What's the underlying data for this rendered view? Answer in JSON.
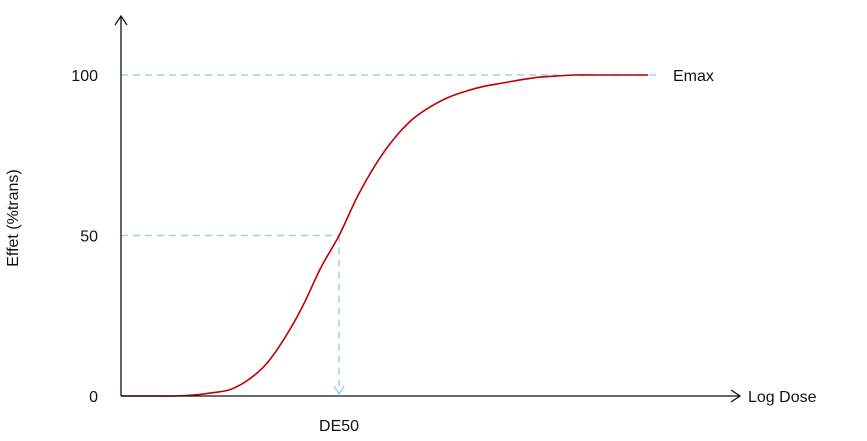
{
  "chart_data": {
    "type": "line",
    "xlabel": "Log Dose",
    "ylabel": "Effet (%trans)",
    "y_ticks": [
      {
        "value": 0,
        "label": "0"
      },
      {
        "value": 50,
        "label": "50"
      },
      {
        "value": 100,
        "label": "100"
      }
    ],
    "ylim": [
      0,
      107
    ],
    "annotations": {
      "emax_label": "Emax",
      "emax_value": 100,
      "de50_label": "DE50",
      "de50_effect": 50
    },
    "series": [
      {
        "color": "#c00000",
        "y": [
          0,
          0,
          0,
          0,
          0.3,
          1,
          2,
          5,
          10,
          18,
          28,
          40,
          50,
          62,
          72,
          80,
          86,
          90,
          93,
          95,
          96.5,
          97.5,
          98.5,
          99.3,
          99.7,
          100,
          100,
          100,
          100,
          100
        ]
      }
    ],
    "guide_color": "#9fcff0",
    "axis_color": "#111111"
  }
}
